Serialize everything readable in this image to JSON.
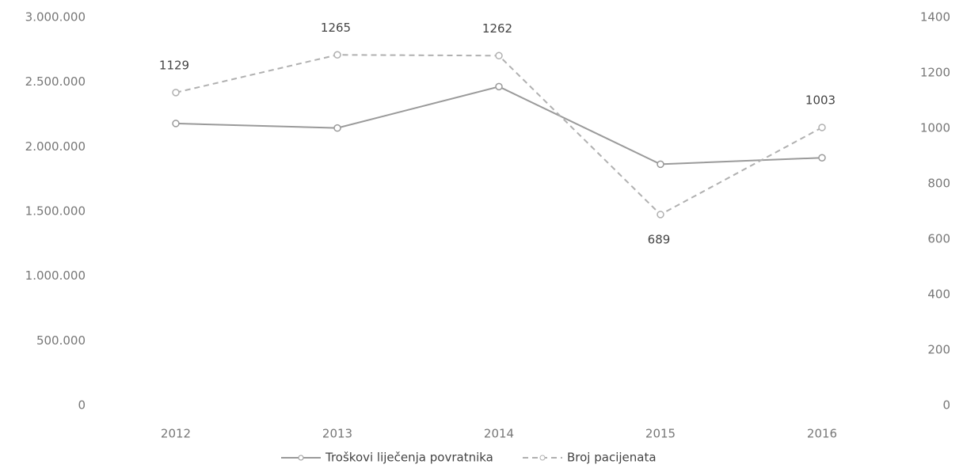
{
  "chart_data": {
    "type": "line",
    "categories": [
      "2012",
      "2013",
      "2014",
      "2015",
      "2016"
    ],
    "series": [
      {
        "name": "Troškovi liječenja povratnika",
        "color": "#9a9a9a",
        "values": [
          2180000,
          2145000,
          2465000,
          1865000,
          1915000
        ]
      },
      {
        "name": "Broj pacijenata",
        "color": "#b0b0b0",
        "values": [
          1129,
          1265,
          1262,
          689,
          1003
        ],
        "axis": "y2",
        "dashed": true
      }
    ],
    "ylim": [
      0,
      3000000
    ],
    "yticks": [
      0,
      {
        "value": 500000,
        "label": "500.000"
      },
      {
        "value": 1000000,
        "label": "1.000.000"
      },
      {
        "value": 1500000,
        "label": "1.500.000"
      },
      {
        "value": 2000000,
        "label": "2.000.000"
      },
      {
        "value": 2500000,
        "label": "2.500.000"
      },
      {
        "value": 3000000,
        "label": "3.000.000"
      }
    ],
    "y2lim": [
      0,
      1400
    ],
    "y2ticks": [
      0,
      200,
      400,
      600,
      800,
      1000,
      1200,
      1400
    ],
    "grid": false,
    "legend": "bottom"
  }
}
